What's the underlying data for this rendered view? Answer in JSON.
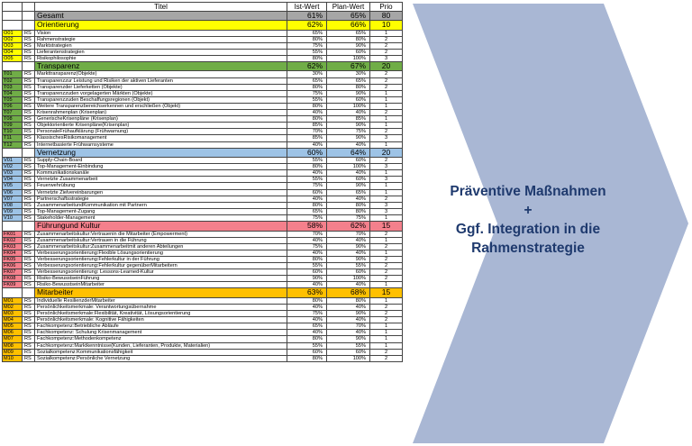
{
  "header": {
    "col_title": "Titel",
    "col_ist": "Ist-Wert",
    "col_plan": "Plan-Wert",
    "col_prio": "Prio"
  },
  "total": {
    "title": "Gesamt",
    "ist": "61%",
    "plan": "65%",
    "prio": "80",
    "color": "#a6a6a6"
  },
  "sections": [
    {
      "title": "Orientierung",
      "ist": "62%",
      "plan": "66%",
      "prio": "10",
      "color": "#ffff00",
      "rows": [
        {
          "id": "O01",
          "rs": "RS",
          "title": "Vision",
          "ist": "65%",
          "plan": "65%",
          "prio": "1"
        },
        {
          "id": "O02",
          "rs": "RS",
          "title": "Rahmenstrategie",
          "ist": "80%",
          "plan": "80%",
          "prio": "2"
        },
        {
          "id": "O03",
          "rs": "RS",
          "title": "Marktstrategien",
          "ist": "75%",
          "plan": "90%",
          "prio": "2"
        },
        {
          "id": "O04",
          "rs": "RS",
          "title": "Lieferantenstrategien",
          "ist": "55%",
          "plan": "60%",
          "prio": "2"
        },
        {
          "id": "O05",
          "rs": "RS",
          "title": "Risikophilosophie",
          "ist": "80%",
          "plan": "100%",
          "prio": "3"
        }
      ]
    },
    {
      "title": "Transparenz",
      "ist": "62%",
      "plan": "67%",
      "prio": "20",
      "color": "#70ad47",
      "rows": [
        {
          "id": "T01",
          "rs": "RS",
          "title": "Markttransparenz(Objekte)",
          "ist": "30%",
          "plan": "30%",
          "prio": "2"
        },
        {
          "id": "T02",
          "rs": "RS",
          "title": "Transparenzzur Leistung und Risiken der aktiven Lieferanten",
          "ist": "65%",
          "plan": "65%",
          "prio": "2"
        },
        {
          "id": "T03",
          "rs": "RS",
          "title": "Transparenzder Lieferketten (Objekte)",
          "ist": "80%",
          "plan": "80%",
          "prio": "2"
        },
        {
          "id": "T04",
          "rs": "RS",
          "title": "Transparenzzuden vorgelagerten Märkten (Objekte)",
          "ist": "75%",
          "plan": "90%",
          "prio": "1"
        },
        {
          "id": "T05",
          "rs": "RS",
          "title": "Transparenzzuden Beschaffungsregionen (Objekt)",
          "ist": "55%",
          "plan": "60%",
          "prio": "1"
        },
        {
          "id": "T06",
          "rs": "RS",
          "title": "Weitere Transparenzbereichserkennen und erschließen (Objekt)",
          "ist": "80%",
          "plan": "100%",
          "prio": "1"
        },
        {
          "id": "T07",
          "rs": "RS",
          "title": "Krisenrahmenplan (Krisenplan)",
          "ist": "40%",
          "plan": "40%",
          "prio": "2"
        },
        {
          "id": "T08",
          "rs": "RS",
          "title": "GenerischeKrisenpläne (Krisenplan)",
          "ist": "80%",
          "plan": "85%",
          "prio": "1"
        },
        {
          "id": "T09",
          "rs": "RS",
          "title": "Objektorientierte  Krisenpläne(Krisenplan)",
          "ist": "85%",
          "plan": "90%",
          "prio": "1"
        },
        {
          "id": "T10",
          "rs": "RS",
          "title": "PersonaleFrühaufklärung (Frühwarnung)",
          "ist": "70%",
          "plan": "75%",
          "prio": "2"
        },
        {
          "id": "T11",
          "rs": "RS",
          "title": "KlassischesRisikomanagement",
          "ist": "85%",
          "plan": "90%",
          "prio": "3"
        },
        {
          "id": "T12",
          "rs": "RS",
          "title": "Internetbasierte  Frühwarnsysteme",
          "ist": "40%",
          "plan": "40%",
          "prio": "1"
        }
      ]
    },
    {
      "title": "Vernetzung",
      "ist": "60%",
      "plan": "64%",
      "prio": "20",
      "color": "#9dc3e6",
      "rows": [
        {
          "id": "V01",
          "rs": "RS",
          "title": "Supply-Chain-Board",
          "ist": "55%",
          "plan": "60%",
          "prio": "2"
        },
        {
          "id": "V02",
          "rs": "RS",
          "title": "Top-Management-Einbindung",
          "ist": "80%",
          "plan": "100%",
          "prio": "3"
        },
        {
          "id": "V03",
          "rs": "RS",
          "title": "Kommunikationskanäle",
          "ist": "40%",
          "plan": "40%",
          "prio": "1"
        },
        {
          "id": "V04",
          "rs": "RS",
          "title": "Vernetzte Zusammenarbeit",
          "ist": "55%",
          "plan": "60%",
          "prio": "3"
        },
        {
          "id": "V05",
          "rs": "RS",
          "title": "Feuerwehrübung",
          "ist": "75%",
          "plan": "90%",
          "prio": "1"
        },
        {
          "id": "V06",
          "rs": "RS",
          "title": "Vernetzte Zielvereinbarungen",
          "ist": "60%",
          "plan": "65%",
          "prio": "1"
        },
        {
          "id": "V07",
          "rs": "RS",
          "title": "Partnerschaftsstrategie",
          "ist": "40%",
          "plan": "40%",
          "prio": "2"
        },
        {
          "id": "V08",
          "rs": "RS",
          "title": "ZusammenarbeitundKommunikation mit  Partnern",
          "ist": "80%",
          "plan": "80%",
          "prio": "3"
        },
        {
          "id": "V09",
          "rs": "RS",
          "title": "Top-Management-Zugang",
          "ist": "65%",
          "plan": "80%",
          "prio": "3"
        },
        {
          "id": "V10",
          "rs": "RS",
          "title": "Stakeholder-Management",
          "ist": "75%",
          "plan": "75%",
          "prio": "1"
        }
      ]
    },
    {
      "title": "Führungund Kultur",
      "ist": "58%",
      "plan": "62%",
      "prio": "15",
      "color": "#f4808c",
      "rows": [
        {
          "id": "FK01",
          "rs": "RS",
          "title": "Zusammenarbeitskultur:Vertrauenin die Mitarbeiter  (Empowerment)",
          "ist": "70%",
          "plan": "70%",
          "prio": "2"
        },
        {
          "id": "FK02",
          "rs": "RS",
          "title": "Zusammenarbeitskultur:Vertrauen in die Führung",
          "ist": "40%",
          "plan": "40%",
          "prio": "1"
        },
        {
          "id": "FK03",
          "rs": "RS",
          "title": "Zusammenarbeitskultur:Zusammenarbeitmit anderen Abteilungen",
          "ist": "75%",
          "plan": "90%",
          "prio": "2"
        },
        {
          "id": "FK04",
          "rs": "RS",
          "title": "Verbesserungsorientierung:Flexible Lösungsorientierung",
          "ist": "40%",
          "plan": "40%",
          "prio": "1"
        },
        {
          "id": "FK05",
          "rs": "RS",
          "title": "Verbesserungsorientierung:Fehlerkultur in der Führung",
          "ist": "80%",
          "plan": "90%",
          "prio": "2"
        },
        {
          "id": "FK06",
          "rs": "RS",
          "title": "Verbesserungsorientierung:Fehlerkultur gegenüberMitarbeitern",
          "ist": "55%",
          "plan": "55%",
          "prio": "2"
        },
        {
          "id": "FK07",
          "rs": "RS",
          "title": "Verbesserungsorientierung:  Lessons-Learned-Kultur",
          "ist": "60%",
          "plan": "60%",
          "prio": "2"
        },
        {
          "id": "FK08",
          "rs": "RS",
          "title": "Risiko-BewusstseinFührung",
          "ist": "90%",
          "plan": "100%",
          "prio": "2"
        },
        {
          "id": "FK09",
          "rs": "RS",
          "title": "Risiko-BewusstseinMitarbeiter",
          "ist": "40%",
          "plan": "40%",
          "prio": "1"
        }
      ]
    },
    {
      "title": "Mitarbeiter",
      "ist": "63%",
      "plan": "68%",
      "prio": "15",
      "color": "#ffc000",
      "rows": [
        {
          "id": "M01",
          "rs": "RS",
          "title": "Individuelle ResilienzderMitarbeiter",
          "ist": "80%",
          "plan": "80%",
          "prio": "1"
        },
        {
          "id": "M02",
          "rs": "RS",
          "title": "Persönlichkeitsmerkmale: Verantwortungsübernahme",
          "ist": "40%",
          "plan": "40%",
          "prio": "2"
        },
        {
          "id": "M03",
          "rs": "RS",
          "title": "Persönlichkeitsmerkmale:Flexibilität, Kreativität,  Lösungsorientierung",
          "ist": "75%",
          "plan": "90%",
          "prio": "2"
        },
        {
          "id": "M04",
          "rs": "RS",
          "title": "Persönlichkeitsmerkmale: Kognitive Fähigkeiten",
          "ist": "40%",
          "plan": "40%",
          "prio": "2"
        },
        {
          "id": "M05",
          "rs": "RS",
          "title": "Fachkompetenz:Betriebliche Abläufe",
          "ist": "65%",
          "plan": "70%",
          "prio": "1"
        },
        {
          "id": "M06",
          "rs": "RS",
          "title": "Fachkompetenz: Schulung Krisenmanagement",
          "ist": "40%",
          "plan": "40%",
          "prio": "1"
        },
        {
          "id": "M07",
          "rs": "RS",
          "title": "Fachkompetenz:Methodenkompetenz",
          "ist": "80%",
          "plan": "90%",
          "prio": "1"
        },
        {
          "id": "M08",
          "rs": "RS",
          "title": "Fachkompetenz:Marktkenntnisse(Kunden, Lieferanten, Produkte, Materialien)",
          "ist": "55%",
          "plan": "55%",
          "prio": "1"
        },
        {
          "id": "M09",
          "rs": "RS",
          "title": "Sozialkompetenz:Kommunikationsfähigkeit",
          "ist": "60%",
          "plan": "60%",
          "prio": "2"
        },
        {
          "id": "M10",
          "rs": "RS",
          "title": "Sozialkompetenz:Persönliche Vernetzung",
          "ist": "80%",
          "plan": "100%",
          "prio": "2"
        }
      ]
    }
  ],
  "callout": {
    "line1": "Präventive Maßnahmen",
    "line2": "+",
    "line3": "Ggf. Integration in  die",
    "line4": "Rahmenstrategie",
    "fill_color": "#a9b7d4",
    "text_color": "#1f3a6e"
  }
}
